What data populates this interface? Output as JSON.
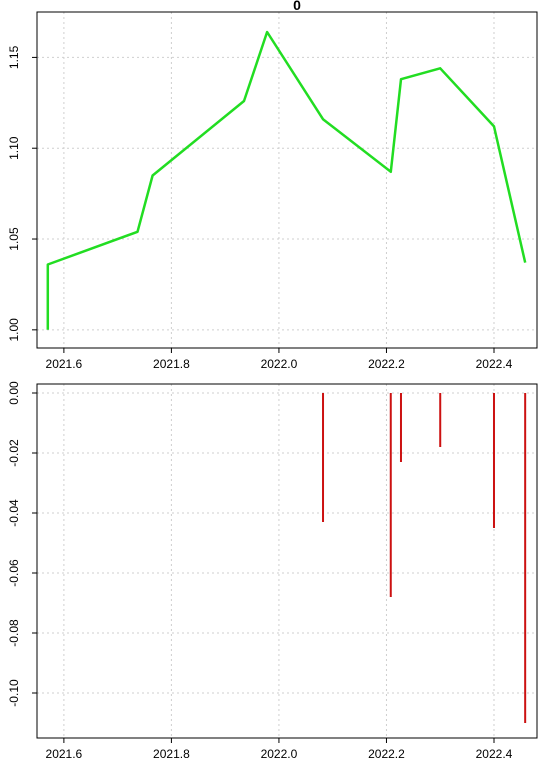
{
  "chart_data": [
    {
      "type": "line",
      "title": "0",
      "xlabel": "",
      "ylabel": "",
      "xlim": [
        2021.55,
        2022.48
      ],
      "ylim": [
        0.99,
        1.175
      ],
      "x_ticks": [
        2021.6,
        2021.8,
        2022.0,
        2022.2,
        2022.4
      ],
      "x_tick_labels": [
        "2021.6",
        "2021.8",
        "2022.0",
        "2022.2",
        "2022.4"
      ],
      "y_ticks": [
        1.0,
        1.05,
        1.1,
        1.15
      ],
      "y_tick_labels": [
        "1.00",
        "1.05",
        "1.10",
        "1.15"
      ],
      "grid": true,
      "color": "#22dd22",
      "x": [
        2021.57,
        2021.57,
        2021.737,
        2021.765,
        2021.935,
        2021.978,
        2022.082,
        2022.208,
        2022.227,
        2022.3,
        2022.4,
        2022.458
      ],
      "y": [
        1.0,
        1.036,
        1.054,
        1.085,
        1.126,
        1.164,
        1.116,
        1.087,
        1.138,
        1.144,
        1.112,
        1.037
      ]
    },
    {
      "type": "bar",
      "title": "",
      "xlabel": "",
      "ylabel": "",
      "xlim": [
        2021.55,
        2022.48
      ],
      "ylim": [
        -0.115,
        0.003
      ],
      "x_ticks": [
        2021.6,
        2021.8,
        2022.0,
        2022.2,
        2022.4
      ],
      "x_tick_labels": [
        "2021.6",
        "2021.8",
        "2022.0",
        "2022.2",
        "2022.4"
      ],
      "y_ticks": [
        0.0,
        -0.02,
        -0.04,
        -0.06,
        -0.08,
        -0.1
      ],
      "y_tick_labels": [
        "0.00",
        "-0.02",
        "-0.04",
        "-0.06",
        "-0.08",
        "-0.10"
      ],
      "grid": true,
      "color": "#cc1111",
      "x": [
        2022.082,
        2022.208,
        2022.227,
        2022.3,
        2022.4,
        2022.458
      ],
      "values": [
        -0.043,
        -0.068,
        -0.023,
        -0.018,
        -0.045,
        -0.11
      ]
    }
  ]
}
